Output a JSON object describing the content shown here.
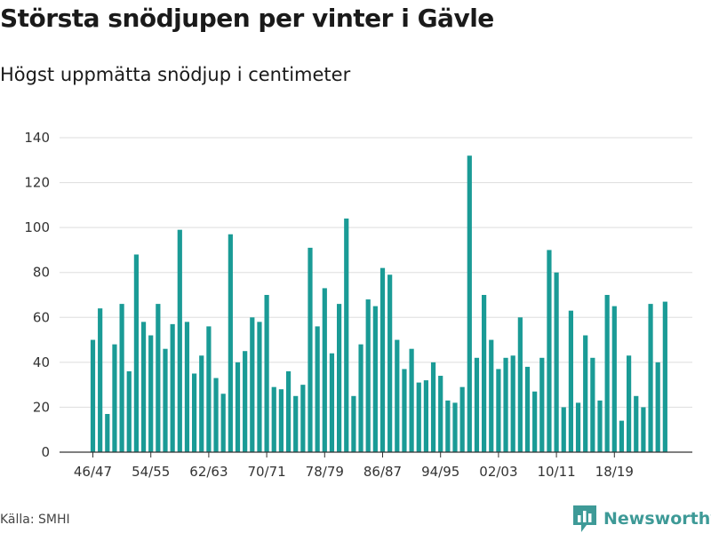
{
  "title": "Största snödjupen per vinter i Gävle",
  "subtitle": "Högst uppmätta snödjup i centimeter",
  "source": "Källa: SMHI",
  "brand": {
    "name": "Newsworthy",
    "icon": "newsworthy-logo-icon",
    "color": "#3e9a97"
  },
  "chart_data": {
    "type": "bar",
    "title": "Största snödjupen per vinter i Gävle",
    "subtitle": "Högst uppmätta snödjup i centimeter",
    "xlabel": "",
    "ylabel": "",
    "ylim": [
      0,
      140
    ],
    "yticks": [
      0,
      20,
      40,
      60,
      80,
      100,
      120,
      140
    ],
    "xtick_labels": [
      "46/47",
      "54/55",
      "62/63",
      "70/71",
      "78/79",
      "86/87",
      "94/95",
      "02/03",
      "10/11",
      "18/19"
    ],
    "grid": true,
    "bar_color": "#1a9b96",
    "categories": [
      "46/47",
      "47/48",
      "48/49",
      "49/50",
      "50/51",
      "51/52",
      "52/53",
      "53/54",
      "54/55",
      "55/56",
      "56/57",
      "57/58",
      "58/59",
      "59/60",
      "60/61",
      "61/62",
      "62/63",
      "63/64",
      "64/65",
      "65/66",
      "66/67",
      "67/68",
      "68/69",
      "69/70",
      "70/71",
      "71/72",
      "72/73",
      "73/74",
      "74/75",
      "75/76",
      "76/77",
      "77/78",
      "78/79",
      "79/80",
      "80/81",
      "81/82",
      "82/83",
      "83/84",
      "84/85",
      "85/86",
      "86/87",
      "87/88",
      "88/89",
      "89/90",
      "90/91",
      "91/92",
      "92/93",
      "93/94",
      "94/95",
      "95/96",
      "96/97",
      "97/98",
      "98/99",
      "99/00",
      "00/01",
      "01/02",
      "02/03",
      "03/04",
      "04/05",
      "05/06",
      "06/07",
      "07/08",
      "08/09",
      "09/10",
      "10/11",
      "11/12",
      "12/13",
      "13/14",
      "14/15",
      "15/16",
      "16/17",
      "17/18",
      "18/19",
      "19/20",
      "20/21",
      "21/22",
      "22/23",
      "23/24",
      "24/25",
      "25/26",
      "26/27"
    ],
    "values": [
      50,
      64,
      17,
      48,
      66,
      36,
      88,
      58,
      52,
      66,
      46,
      57,
      99,
      58,
      35,
      43,
      56,
      33,
      26,
      97,
      40,
      45,
      60,
      58,
      70,
      29,
      28,
      36,
      25,
      30,
      91,
      56,
      73,
      44,
      66,
      104,
      25,
      48,
      68,
      65,
      82,
      79,
      50,
      37,
      46,
      31,
      32,
      40,
      34,
      23,
      22,
      29,
      132,
      42,
      70,
      50,
      37,
      42,
      43,
      60,
      38,
      27,
      42,
      90,
      80,
      20,
      63,
      22,
      52,
      42,
      23,
      70,
      65,
      14,
      43,
      25,
      20,
      66,
      40,
      67,
      null
    ]
  }
}
